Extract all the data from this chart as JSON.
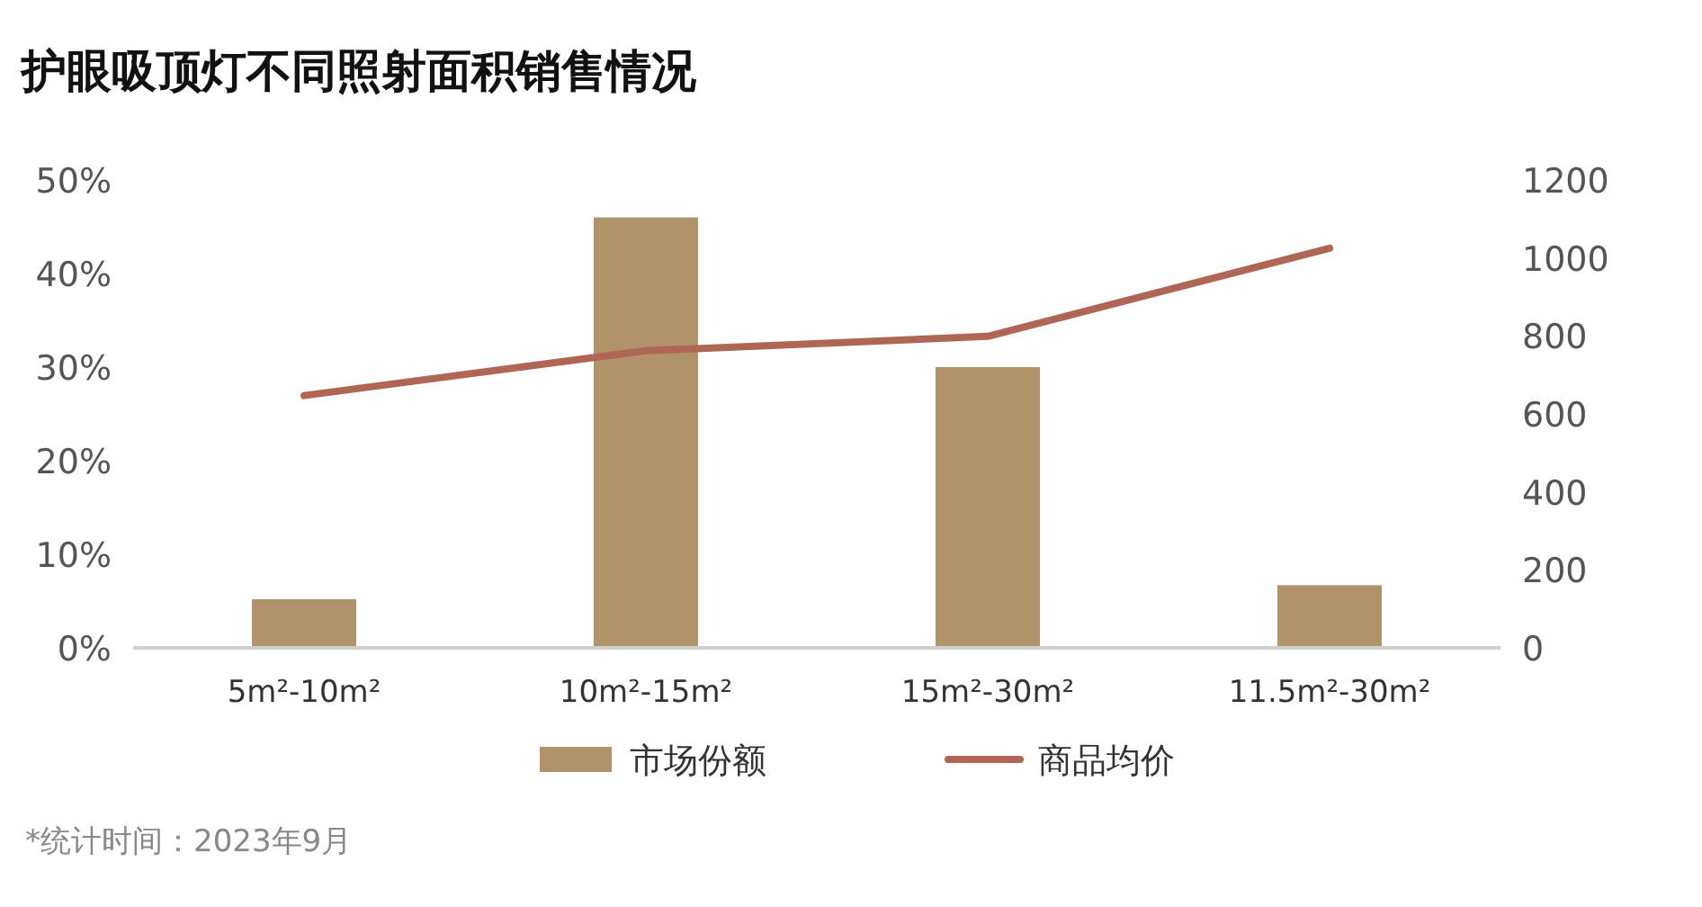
{
  "chart_data": {
    "type": "bar",
    "title": "护眼吸顶灯不同照射面积销售情况",
    "categories": [
      "5m²-10m²",
      "10m²-15m²",
      "15m²-30m²",
      "11.5m²-30m²"
    ],
    "series": [
      {
        "name": "市场份额",
        "color": "#b09369",
        "values": [
          5.2,
          46,
          30,
          6.7
        ]
      },
      {
        "name": "商品均价",
        "type": "line",
        "axis": "y2",
        "color": "#b06654",
        "values": [
          647,
          762,
          799,
          1025
        ]
      }
    ],
    "ylim": [
      0,
      50
    ],
    "yticks": [
      {
        "value": 0,
        "label": "0%"
      },
      {
        "value": 10,
        "label": "10%"
      },
      {
        "value": 20,
        "label": "20%"
      },
      {
        "value": 30,
        "label": "30%"
      },
      {
        "value": 40,
        "label": "40%"
      },
      {
        "value": 50,
        "label": "50%"
      }
    ],
    "y2lim": [
      0,
      1200
    ],
    "y2ticks": [
      0,
      200,
      400,
      600,
      800,
      1000,
      1200
    ],
    "legend": "bottom",
    "grid": false,
    "annotations": [
      "*统计时间：2023年9月"
    ]
  }
}
